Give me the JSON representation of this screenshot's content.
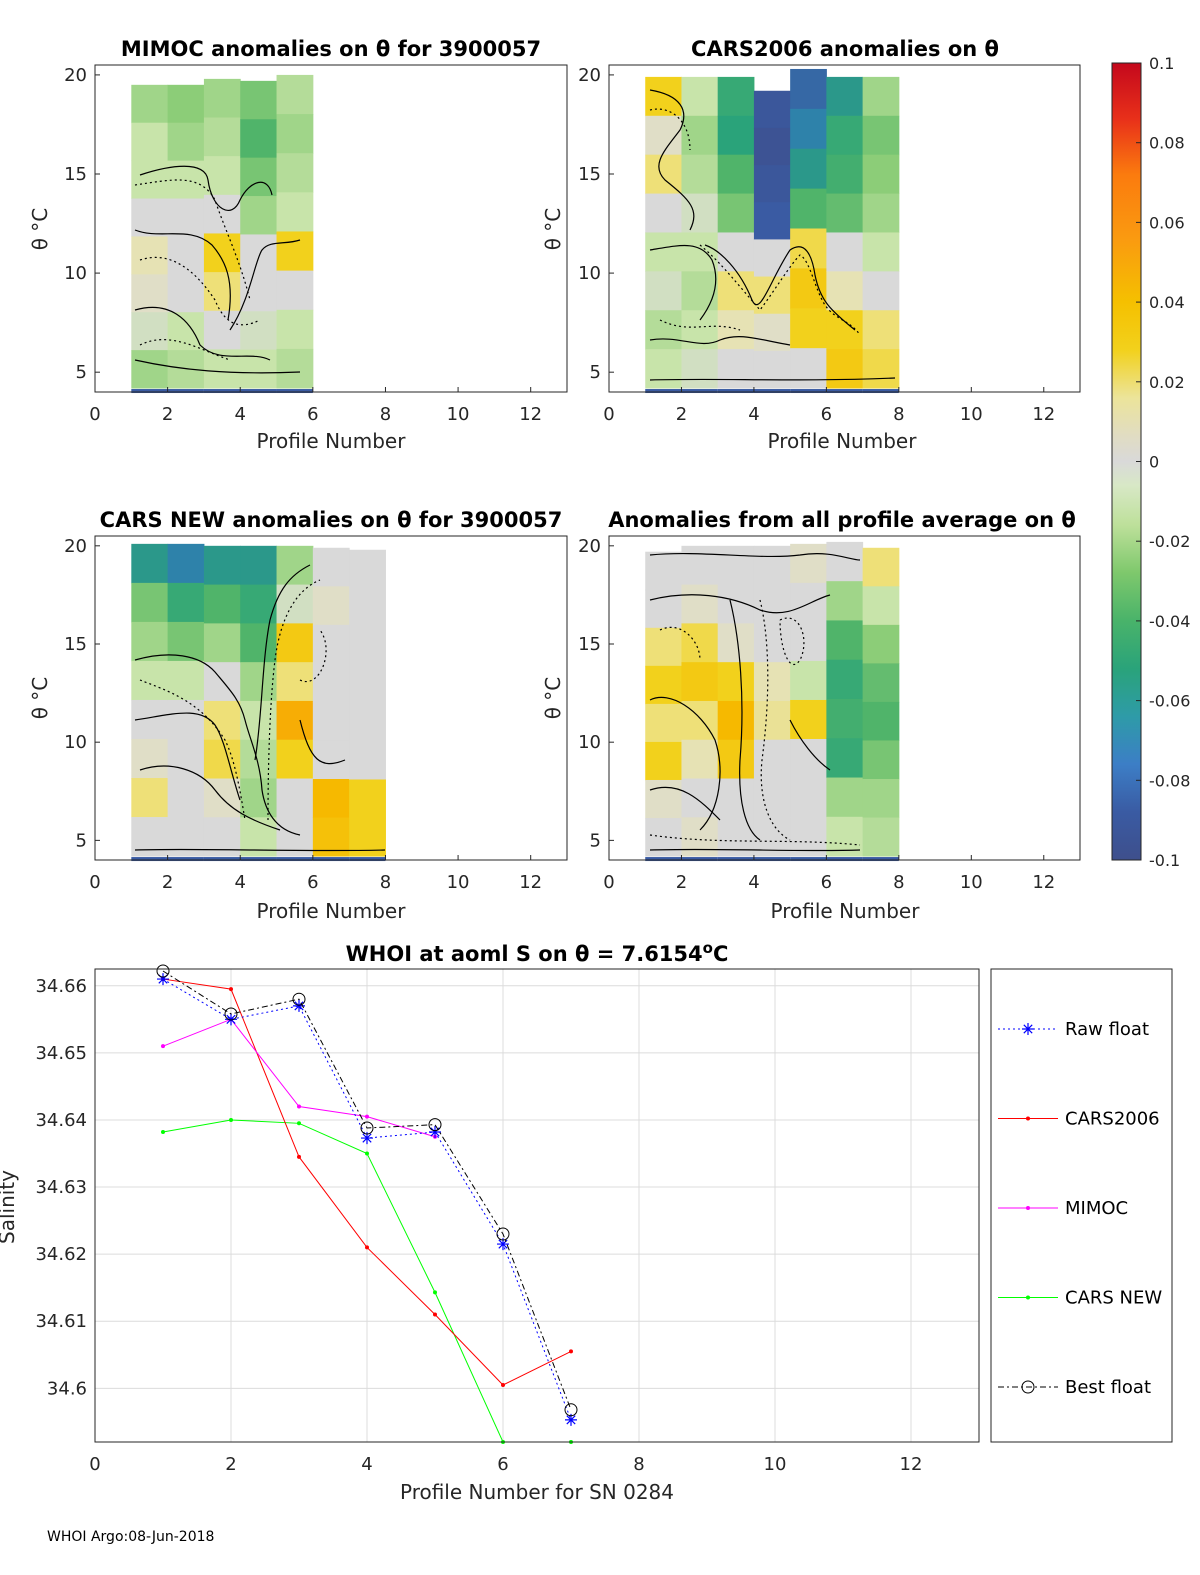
{
  "footer": "WHOI Argo:08-Jun-2018",
  "colorbar": {
    "ticks": [
      "0.1",
      "0.08",
      "0.06",
      "0.04",
      "0.02",
      "0",
      "-0.02",
      "-0.04",
      "-0.06",
      "-0.08",
      "-0.1"
    ],
    "range": [
      -0.1,
      0.1
    ]
  },
  "chart_data": [
    {
      "type": "heatmap",
      "title": "MIMOC anomalies on θ  for 3900057",
      "xlabel": "Profile Number",
      "ylabel": "θ °C",
      "xlim": [
        0,
        13
      ],
      "ylim": [
        4,
        20.5
      ],
      "xticks": [
        "0",
        "2",
        "4",
        "6",
        "8",
        "10",
        "12"
      ],
      "yticks": [
        "5",
        "10",
        "15",
        "20"
      ],
      "columns": [
        {
          "x": 1,
          "top": 19.5,
          "values": [
            -0.02,
            -0.01,
            -0.01,
            0.0,
            0.01,
            0.005,
            -0.005,
            -0.02
          ]
        },
        {
          "x": 2,
          "top": 19.5,
          "values": [
            -0.025,
            -0.02,
            -0.01,
            0.0,
            0.0,
            0.0,
            -0.01,
            -0.015
          ]
        },
        {
          "x": 3,
          "top": 19.8,
          "values": [
            -0.02,
            -0.015,
            -0.01,
            0.0,
            0.03,
            0.02,
            0.0,
            -0.01
          ]
        },
        {
          "x": 4,
          "top": 19.7,
          "values": [
            -0.03,
            -0.04,
            -0.03,
            -0.02,
            0.0,
            0.0,
            -0.005,
            -0.01
          ]
        },
        {
          "x": 5,
          "top": 20.0,
          "values": [
            -0.015,
            -0.02,
            -0.015,
            -0.01,
            0.03,
            0.0,
            -0.01,
            -0.015
          ]
        }
      ]
    },
    {
      "type": "heatmap",
      "title": "CARS2006 anomalies on θ",
      "xlabel": "Profile Number",
      "ylabel": "θ °C",
      "xlim": [
        0,
        13
      ],
      "ylim": [
        4,
        20.5
      ],
      "xticks": [
        "0",
        "2",
        "4",
        "6",
        "8",
        "10",
        "12"
      ],
      "yticks": [
        "5",
        "10",
        "15",
        "20"
      ],
      "columns": [
        {
          "x": 1,
          "top": 19.9,
          "values": [
            0.03,
            0.005,
            0.02,
            0.0,
            -0.01,
            -0.005,
            -0.015,
            -0.01
          ]
        },
        {
          "x": 2,
          "top": 19.9,
          "values": [
            -0.01,
            -0.02,
            -0.015,
            -0.005,
            -0.01,
            -0.015,
            -0.01,
            -0.005
          ]
        },
        {
          "x": 3,
          "top": 19.9,
          "values": [
            -0.05,
            -0.055,
            -0.04,
            -0.03,
            0.0,
            0.02,
            0.01,
            0.0
          ]
        },
        {
          "x": 4,
          "top": 19.2,
          "values": [
            -0.09,
            -0.095,
            -0.09,
            -0.085,
            0.0,
            0.02,
            0.005,
            0.0
          ]
        },
        {
          "x": 5,
          "top": 20.3,
          "values": [
            -0.08,
            -0.07,
            -0.06,
            -0.04,
            0.025,
            0.035,
            0.03,
            0.0
          ]
        },
        {
          "x": 6,
          "top": 19.9,
          "values": [
            -0.06,
            -0.05,
            -0.045,
            -0.035,
            0.0,
            0.01,
            0.03,
            0.035
          ]
        },
        {
          "x": 7,
          "top": 19.9,
          "values": [
            -0.02,
            -0.03,
            -0.025,
            -0.02,
            -0.01,
            0.0,
            0.02,
            0.025
          ]
        }
      ]
    },
    {
      "type": "heatmap",
      "title": "CARS NEW anomalies on θ for 3900057",
      "xlabel": "Profile Number",
      "ylabel": "θ °C",
      "xlim": [
        0,
        13
      ],
      "ylim": [
        4,
        20.5
      ],
      "xticks": [
        "0",
        "2",
        "4",
        "6",
        "8",
        "10",
        "12"
      ],
      "yticks": [
        "5",
        "10",
        "15",
        "20"
      ],
      "columns": [
        {
          "x": 1,
          "top": 20.1,
          "values": [
            -0.06,
            -0.03,
            -0.02,
            -0.01,
            0.0,
            0.005,
            0.02,
            0.0
          ]
        },
        {
          "x": 2,
          "top": 20.1,
          "values": [
            -0.07,
            -0.05,
            -0.03,
            -0.01,
            0.0,
            0.0,
            0.0,
            0.0
          ]
        },
        {
          "x": 3,
          "top": 20.0,
          "values": [
            -0.06,
            -0.04,
            -0.02,
            0.0,
            0.02,
            0.025,
            0.005,
            0.0
          ]
        },
        {
          "x": 4,
          "top": 20.0,
          "values": [
            -0.06,
            -0.05,
            -0.04,
            -0.02,
            -0.01,
            -0.015,
            -0.02,
            -0.01
          ]
        },
        {
          "x": 5,
          "top": 20.0,
          "values": [
            -0.02,
            -0.005,
            0.035,
            0.02,
            0.05,
            0.03,
            0.0,
            0.0
          ]
        },
        {
          "x": 6,
          "top": 19.9,
          "values": [
            0.0,
            0.005,
            0.0,
            0.0,
            0.0,
            0.0,
            0.045,
            0.04
          ]
        },
        {
          "x": 7,
          "top": 19.8,
          "values": [
            0.0,
            0.0,
            0.0,
            0.0,
            0.0,
            0.0,
            0.03,
            0.03
          ]
        }
      ]
    },
    {
      "type": "heatmap",
      "title": "Anomalies from all profile average on θ",
      "xlabel": "Profile Number",
      "ylabel": "θ °C",
      "xlim": [
        0,
        13
      ],
      "ylim": [
        4,
        20.5
      ],
      "xticks": [
        "0",
        "2",
        "4",
        "6",
        "8",
        "10",
        "12"
      ],
      "yticks": [
        "5",
        "10",
        "15",
        "20"
      ],
      "columns": [
        {
          "x": 1,
          "top": 19.7,
          "values": [
            0.0,
            0.0,
            0.02,
            0.03,
            0.02,
            0.03,
            0.005,
            0.0
          ]
        },
        {
          "x": 2,
          "top": 20.0,
          "values": [
            0.0,
            0.005,
            0.025,
            0.035,
            0.02,
            0.01,
            0.0,
            0.005
          ]
        },
        {
          "x": 3,
          "top": 20.0,
          "values": [
            0.0,
            0.0,
            0.005,
            0.03,
            0.045,
            0.035,
            0.0,
            0.0
          ]
        },
        {
          "x": 4,
          "top": 20.0,
          "values": [
            0.0,
            0.0,
            0.0,
            0.01,
            0.015,
            0.0,
            0.0,
            0.0
          ]
        },
        {
          "x": 5,
          "top": 20.1,
          "values": [
            0.005,
            0.0,
            0.0,
            -0.01,
            0.03,
            0.0,
            0.0,
            0.0
          ]
        },
        {
          "x": 6,
          "top": 20.2,
          "values": [
            0.0,
            -0.02,
            -0.04,
            -0.05,
            -0.045,
            -0.05,
            -0.02,
            -0.01
          ]
        },
        {
          "x": 7,
          "top": 19.9,
          "values": [
            0.02,
            -0.01,
            -0.025,
            -0.035,
            -0.04,
            -0.03,
            -0.02,
            -0.015
          ]
        }
      ]
    },
    {
      "type": "line",
      "title": "WHOI at aoml S on θ = 7.6154°C",
      "xlabel": "Profile Number for SN 0284",
      "ylabel": "Salinity",
      "xlim": [
        0,
        13
      ],
      "ylim": [
        34.592,
        34.6625
      ],
      "xticks": [
        "0",
        "2",
        "4",
        "6",
        "8",
        "10",
        "12"
      ],
      "yticks": [
        "34.6",
        "34.61",
        "34.62",
        "34.63",
        "34.64",
        "34.65",
        "34.66"
      ],
      "x": [
        1,
        2,
        3,
        4,
        5,
        6,
        7
      ],
      "series": [
        {
          "name": "Raw float",
          "color": "#0000ff",
          "values": [
            34.661,
            34.655,
            34.657,
            34.6373,
            34.6382,
            34.6215,
            34.5953
          ]
        },
        {
          "name": "CARS2006",
          "color": "#ff0000",
          "values": [
            34.661,
            34.6595,
            34.6345,
            34.621,
            34.611,
            34.6005,
            34.6055
          ]
        },
        {
          "name": "MIMOC",
          "color": "#ff00ff",
          "values": [
            34.651,
            34.655,
            34.642,
            34.6405,
            34.6375,
            null,
            null
          ]
        },
        {
          "name": "CARS NEW",
          "color": "#00ff00",
          "values": [
            34.6382,
            34.64,
            34.6395,
            34.635,
            34.6143,
            34.592,
            34.592
          ]
        },
        {
          "name": "Best float",
          "color": "#000000",
          "values": [
            34.6622,
            34.6558,
            34.658,
            34.6388,
            34.6393,
            34.623,
            34.5968
          ]
        }
      ]
    }
  ]
}
